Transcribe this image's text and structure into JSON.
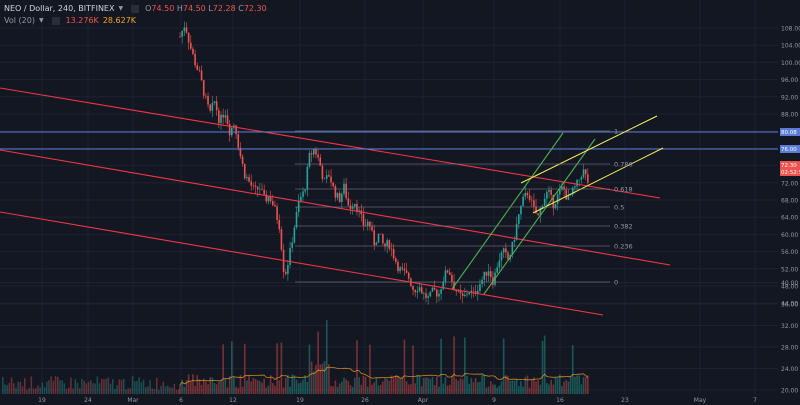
{
  "legend": {
    "symbol": "NEO / Dollar, 240, BITFINEX",
    "open_label": "O",
    "open": "74.50",
    "high_label": "H",
    "high": "74.50",
    "low_label": "L",
    "low": "72.28",
    "close_label": "C",
    "close": "72.30",
    "vol_label": "Vol (20)",
    "vol_value": "13.276K",
    "vol_ma": "28.627K"
  },
  "colors": {
    "background": "#131722",
    "up": "#26a69a",
    "down": "#ef5350",
    "channel_red": "#f23645",
    "channel_green": "#4caf50",
    "channel_yellow": "#f5f05a",
    "horizontal_blue": "#5b7bd6",
    "fib": "#787b86",
    "vol_ma": "#f5a623"
  },
  "chart_data": {
    "type": "candlestick",
    "symbol": "NEO / Dollar",
    "interval": "240",
    "exchange": "BITFINEX",
    "y_axis": {
      "ticks": [
        "108.00",
        "104.00",
        "100.00",
        "96.00",
        "92.00",
        "88.00",
        "84.00",
        "80.00",
        "76.00",
        "72.00",
        "68.00",
        "64.00",
        "60.00",
        "56.00",
        "52.00",
        "48.00",
        "44.00",
        "40.00",
        "36.00",
        "32.00",
        "28.00",
        "24.00",
        "20.00"
      ],
      "price_range": [
        42,
        110
      ],
      "volume_axis_ticks": [
        "36.00",
        "32.00",
        "28.00",
        "24.00",
        "20.00"
      ]
    },
    "x_axis": {
      "ticks": [
        "19",
        "24",
        "Mar",
        "6",
        "12",
        "19",
        "26",
        "Apr",
        "9",
        "16",
        "23",
        "May",
        "7"
      ]
    },
    "price_labels": [
      {
        "value": "80.08",
        "kind": "horizontal-line"
      },
      {
        "value": "76.00",
        "kind": "horizontal-line"
      },
      {
        "value": "72.30",
        "kind": "last-price"
      },
      {
        "value": "02:52:50",
        "kind": "countdown"
      }
    ],
    "fib_levels": [
      "1",
      "0.786",
      "0.618",
      "0.5",
      "0.382",
      "0.236",
      "0"
    ],
    "price_path": [
      [
        0,
        106
      ],
      [
        0.5,
        109
      ],
      [
        1,
        104
      ],
      [
        1.5,
        100
      ],
      [
        2,
        97
      ],
      [
        2.5,
        92
      ],
      [
        3,
        88
      ],
      [
        3.5,
        91
      ],
      [
        4,
        86
      ],
      [
        4.5,
        89
      ],
      [
        5,
        84
      ],
      [
        5.5,
        86
      ],
      [
        6,
        79
      ],
      [
        6.5,
        74
      ],
      [
        7,
        72
      ],
      [
        7.5,
        70
      ],
      [
        8,
        71
      ],
      [
        8.5,
        68
      ],
      [
        9,
        69
      ],
      [
        9.5,
        66
      ],
      [
        10,
        62
      ],
      [
        10.5,
        50
      ],
      [
        11,
        55
      ],
      [
        11.5,
        62
      ],
      [
        12,
        68
      ],
      [
        12.5,
        70
      ],
      [
        13,
        78
      ],
      [
        13.5,
        80
      ],
      [
        14,
        77
      ],
      [
        14.5,
        72
      ],
      [
        15,
        74
      ],
      [
        15.5,
        70
      ],
      [
        16,
        68
      ],
      [
        16.5,
        71
      ],
      [
        17,
        66
      ],
      [
        17.5,
        68
      ],
      [
        18,
        65
      ],
      [
        18.5,
        62
      ],
      [
        19,
        63
      ],
      [
        19.5,
        58
      ],
      [
        20,
        60
      ],
      [
        20.5,
        57
      ],
      [
        21,
        58
      ],
      [
        21.5,
        55
      ],
      [
        22,
        52
      ],
      [
        22.5,
        51
      ],
      [
        23,
        50
      ],
      [
        23.5,
        47
      ],
      [
        24,
        48
      ],
      [
        24.5,
        46
      ],
      [
        25,
        45
      ],
      [
        25.5,
        47
      ],
      [
        26,
        46
      ],
      [
        26.5,
        50
      ],
      [
        27,
        52
      ],
      [
        27.5,
        48
      ],
      [
        28,
        46
      ],
      [
        28.5,
        45
      ],
      [
        29,
        47
      ],
      [
        29.5,
        46
      ],
      [
        30,
        48
      ],
      [
        30.5,
        50
      ],
      [
        31,
        52
      ],
      [
        31.5,
        49
      ],
      [
        32,
        54
      ],
      [
        32.5,
        56
      ],
      [
        33,
        54
      ],
      [
        33.5,
        58
      ],
      [
        34,
        64
      ],
      [
        34.5,
        68
      ],
      [
        35,
        70
      ],
      [
        35.5,
        66
      ],
      [
        36,
        64
      ],
      [
        36.5,
        68
      ],
      [
        37,
        70
      ],
      [
        37.5,
        67
      ],
      [
        38,
        69
      ],
      [
        38.5,
        71
      ],
      [
        39,
        68
      ],
      [
        39.5,
        70
      ],
      [
        40,
        72
      ],
      [
        40.5,
        75
      ],
      [
        41,
        72.3
      ]
    ]
  }
}
